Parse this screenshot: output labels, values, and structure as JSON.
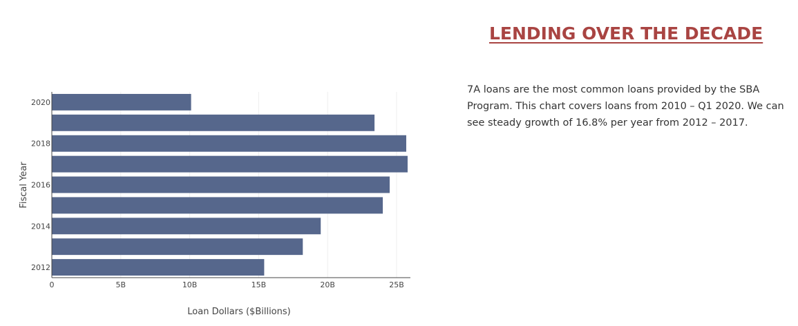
{
  "header": {
    "title": "LENDING OVER THE DECADE"
  },
  "description": {
    "text": "7A loans are the most common loans provided by the SBA Program. This chart covers loans from 2010 – Q1 2020. We can see steady growth of 16.8% per year from 2012 – 2017."
  },
  "colors": {
    "bar": "#56678c",
    "title": "#a94442",
    "grid": "#eeeeee",
    "axis": "#444444"
  },
  "chart_data": {
    "type": "bar",
    "orientation": "horizontal",
    "categories": [
      "2012",
      "2013",
      "2014",
      "2015",
      "2016",
      "2017",
      "2018",
      "2019",
      "2020"
    ],
    "values": [
      15.4,
      18.2,
      19.5,
      24.0,
      24.5,
      25.8,
      25.7,
      23.4,
      10.1
    ],
    "x_ticks": [
      {
        "value": 0,
        "label": "0"
      },
      {
        "value": 5,
        "label": "5B"
      },
      {
        "value": 10,
        "label": "10B"
      },
      {
        "value": 15,
        "label": "15B"
      },
      {
        "value": 20,
        "label": "20B"
      },
      {
        "value": 25,
        "label": "25B"
      }
    ],
    "y_ticks": [
      "2012",
      "2014",
      "2016",
      "2018",
      "2020"
    ],
    "xlabel": "Loan Dollars ($Billions)",
    "ylabel": "Fiscal Year",
    "xlim": [
      0,
      26
    ],
    "grid": true,
    "legend": false
  }
}
